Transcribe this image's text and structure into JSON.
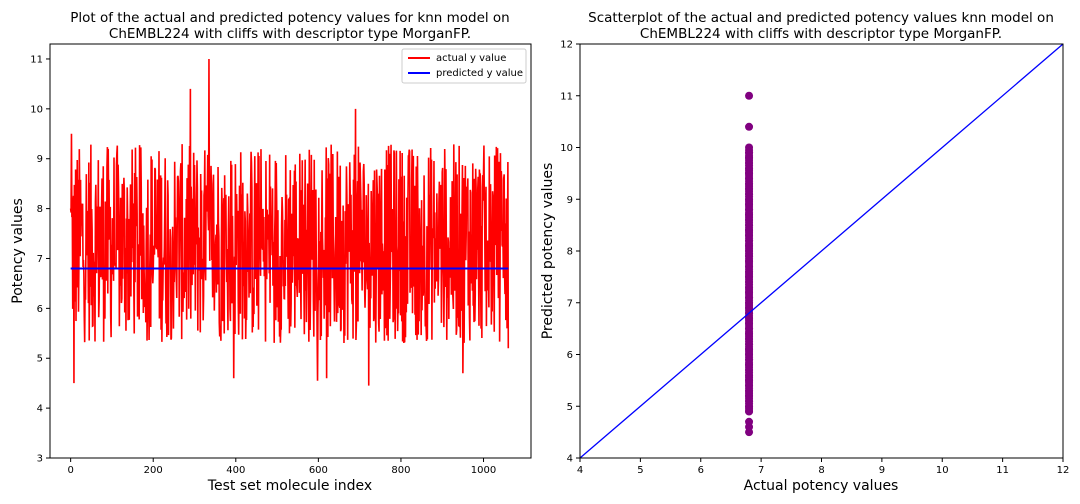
{
  "colors": {
    "actual": "#ff0000",
    "predicted": "#0000ff",
    "scatter": "#800080",
    "identity": "#0000ff"
  },
  "chart_data": [
    {
      "type": "line",
      "title_line1": "Plot of the actual and predicted potency values for knn model on",
      "title_line2": "ChEMBL224 with cliffs with descriptor type MorganFP.",
      "xlabel": "Test set molecule index",
      "ylabel": "Potency values",
      "xlim": [
        -50,
        1115
      ],
      "ylim": [
        3,
        11.3
      ],
      "xticks": [
        0,
        200,
        400,
        600,
        800,
        1000
      ],
      "yticks": [
        3,
        4,
        5,
        6,
        7,
        8,
        9,
        10,
        11
      ],
      "grid": false,
      "legend_position": "top-right",
      "n_points": 1061,
      "series": [
        {
          "name": "actual y value",
          "color": "#ff0000",
          "summary": {
            "min": 4.45,
            "max": 11.0,
            "typical_low": 5.3,
            "typical_high": 9.3
          },
          "notable_points": [
            {
              "x": 0,
              "y": 8.0
            },
            {
              "x": 2,
              "y": 9.5
            },
            {
              "x": 8,
              "y": 4.5
            },
            {
              "x": 290,
              "y": 10.4
            },
            {
              "x": 335,
              "y": 11.0
            },
            {
              "x": 395,
              "y": 4.6
            },
            {
              "x": 598,
              "y": 4.55
            },
            {
              "x": 620,
              "y": 4.6
            },
            {
              "x": 690,
              "y": 10.0
            },
            {
              "x": 722,
              "y": 4.45
            },
            {
              "x": 950,
              "y": 4.7
            },
            {
              "x": 1060,
              "y": 5.2
            }
          ]
        },
        {
          "name": "predicted y value",
          "color": "#0000ff",
          "constant_value": 6.8
        }
      ]
    },
    {
      "type": "scatter",
      "title_line1": "Scatterplot of the actual and predicted potency values knn model on",
      "title_line2": "ChEMBL224 with cliffs with descriptor type MorganFP.",
      "xlabel": "Actual potency values",
      "ylabel": "Predicted potency values",
      "xlim": [
        4,
        12
      ],
      "ylim": [
        4,
        12
      ],
      "xticks": [
        4,
        5,
        6,
        7,
        8,
        9,
        10,
        11,
        12
      ],
      "yticks": [
        4,
        5,
        6,
        7,
        8,
        9,
        10,
        11,
        12
      ],
      "grid": false,
      "x_value": 6.8,
      "y_min": 4.5,
      "y_max": 11.0,
      "y_points": [
        4.5,
        4.6,
        4.7,
        4.9,
        5.0,
        5.1,
        5.2,
        5.3,
        5.4,
        5.5,
        5.6,
        5.7,
        5.8,
        5.9,
        6.0,
        6.1,
        6.2,
        6.3,
        6.4,
        6.5,
        6.6,
        6.7,
        6.8,
        6.9,
        7.0,
        7.1,
        7.2,
        7.3,
        7.4,
        7.5,
        7.6,
        7.7,
        7.8,
        7.9,
        8.0,
        8.1,
        8.2,
        8.3,
        8.4,
        8.5,
        8.6,
        8.7,
        8.8,
        8.9,
        9.0,
        9.1,
        9.2,
        9.3,
        9.4,
        9.5,
        9.6,
        9.7,
        9.8,
        9.9,
        10.0,
        10.4,
        11.0
      ],
      "identity_line": {
        "from": [
          4,
          4
        ],
        "to": [
          12,
          12
        ]
      }
    }
  ]
}
